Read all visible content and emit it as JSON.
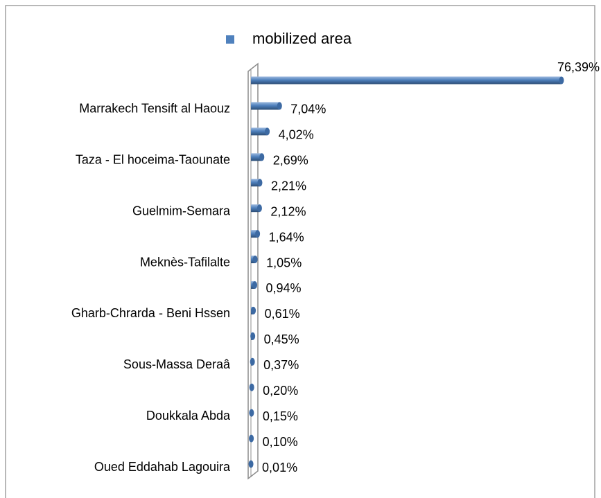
{
  "chart_data": {
    "type": "bar",
    "orientation": "horizontal",
    "categories": [
      null,
      "Marrakech Tensift al Haouz",
      null,
      "Taza - El hoceima-Taounate",
      null,
      "Guelmim-Semara",
      null,
      "Meknès-Tafilalte",
      null,
      "Gharb-Chrarda - Beni Hssen",
      null,
      "Sous-Massa Deraâ",
      null,
      "Doukkala Abda",
      null,
      "Oued Eddahab Lagouira"
    ],
    "series": [
      {
        "name": "mobilized area",
        "color": "#4f81bd",
        "values": [
          76.39,
          7.04,
          4.02,
          2.69,
          2.21,
          2.12,
          1.64,
          1.05,
          0.94,
          0.61,
          0.45,
          0.37,
          0.2,
          0.15,
          0.1,
          0.01
        ],
        "value_labels": [
          "76,39%",
          "7,04%",
          "4,02%",
          "2,69%",
          "2,21%",
          "2,12%",
          "1,64%",
          "1,05%",
          "0,94%",
          "0,61%",
          "0,45%",
          "0,37%",
          "0,20%",
          "0,15%",
          "0,10%",
          "0,01%"
        ]
      }
    ],
    "legend": "top"
  }
}
